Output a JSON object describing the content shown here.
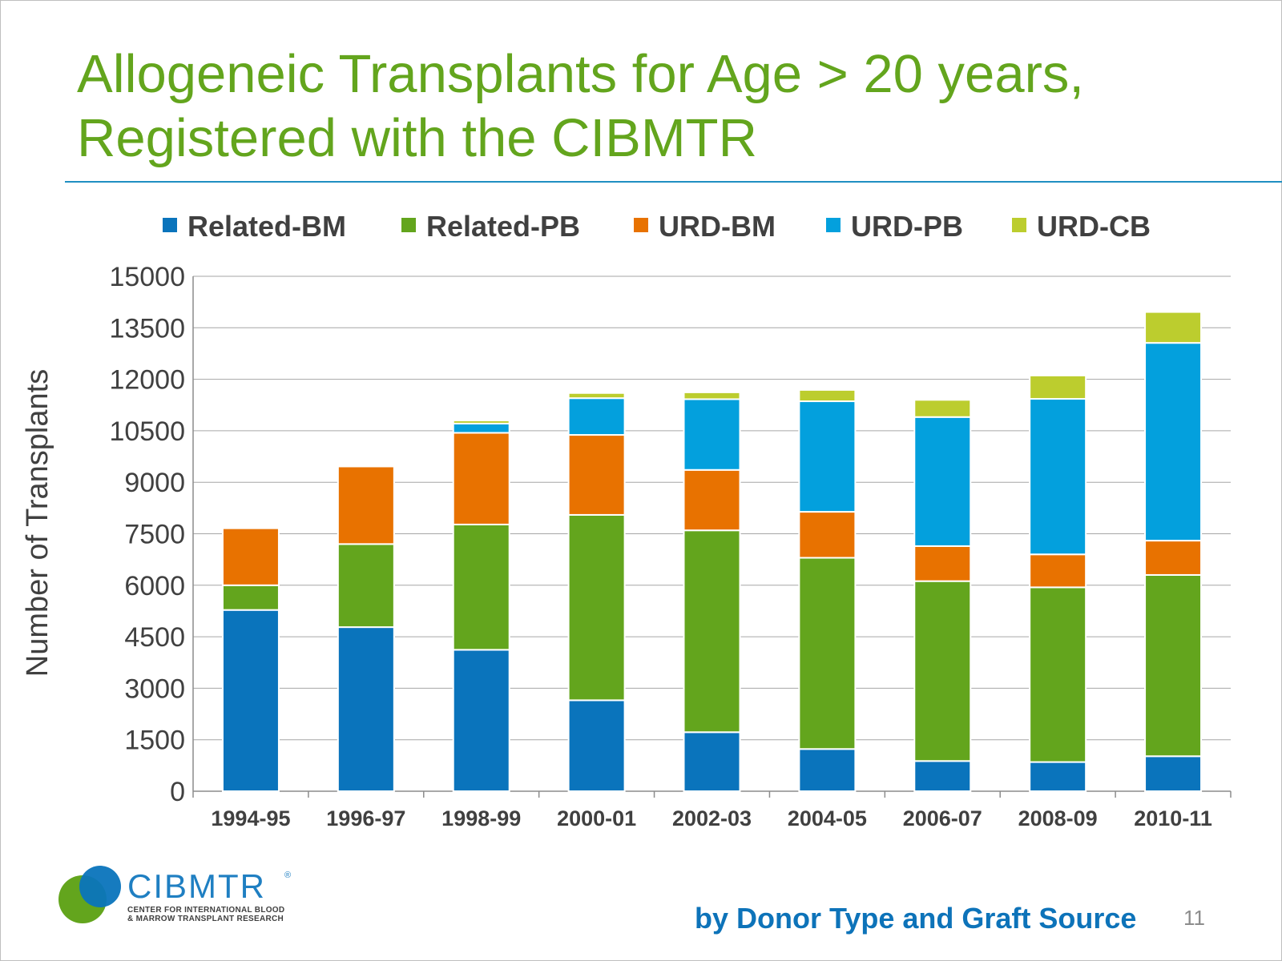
{
  "slide": {
    "title_line1": "Allogeneic Transplants for Age > 20 years,",
    "title_line2": "Registered with the CIBMTR",
    "subtitle": "by Donor Type and Graft Source",
    "page_number": "11",
    "logo": {
      "name": "CIBMTR",
      "registered_mark": "®",
      "sub_line1": "CENTER FOR INTERNATIONAL BLOOD",
      "sub_line2": "& MARROW TRANSPLANT RESEARCH"
    },
    "colors": {
      "title": "#63a51d",
      "rule": "#1f8fc2",
      "subtitle": "#0d73b9"
    }
  },
  "chart_data": {
    "type": "bar",
    "stacked": true,
    "categories": [
      "1994-95",
      "1996-97",
      "1998-99",
      "2000-01",
      "2002-03",
      "2004-05",
      "2006-07",
      "2008-09",
      "2010-11"
    ],
    "series": [
      {
        "name": "Related-BM",
        "color": "#0a74bc",
        "values": [
          5280,
          4780,
          4120,
          2650,
          1720,
          1230,
          880,
          850,
          1020
        ]
      },
      {
        "name": "Related-PB",
        "color": "#63a51d",
        "values": [
          720,
          2420,
          3650,
          5400,
          5880,
          5570,
          5240,
          5090,
          5280
        ]
      },
      {
        "name": "URD-BM",
        "color": "#e87200",
        "values": [
          1660,
          2260,
          2670,
          2330,
          1760,
          1340,
          1020,
          960,
          1000
        ]
      },
      {
        "name": "URD-PB",
        "color": "#03a0dd",
        "values": [
          0,
          0,
          270,
          1070,
          2060,
          3220,
          3760,
          4530,
          5760
        ]
      },
      {
        "name": "URD-CB",
        "color": "#bccd2e",
        "values": [
          0,
          0,
          90,
          150,
          200,
          330,
          500,
          680,
          900
        ]
      }
    ],
    "title": "",
    "xlabel": "",
    "ylabel": "Number of  Transplants",
    "ylim": [
      0,
      15000
    ],
    "yticks": [
      "0",
      "1500",
      "3000",
      "4500",
      "6000",
      "7500",
      "9000",
      "10500",
      "12000",
      "13500",
      "15000"
    ],
    "grid": true,
    "legend_position": "top"
  }
}
